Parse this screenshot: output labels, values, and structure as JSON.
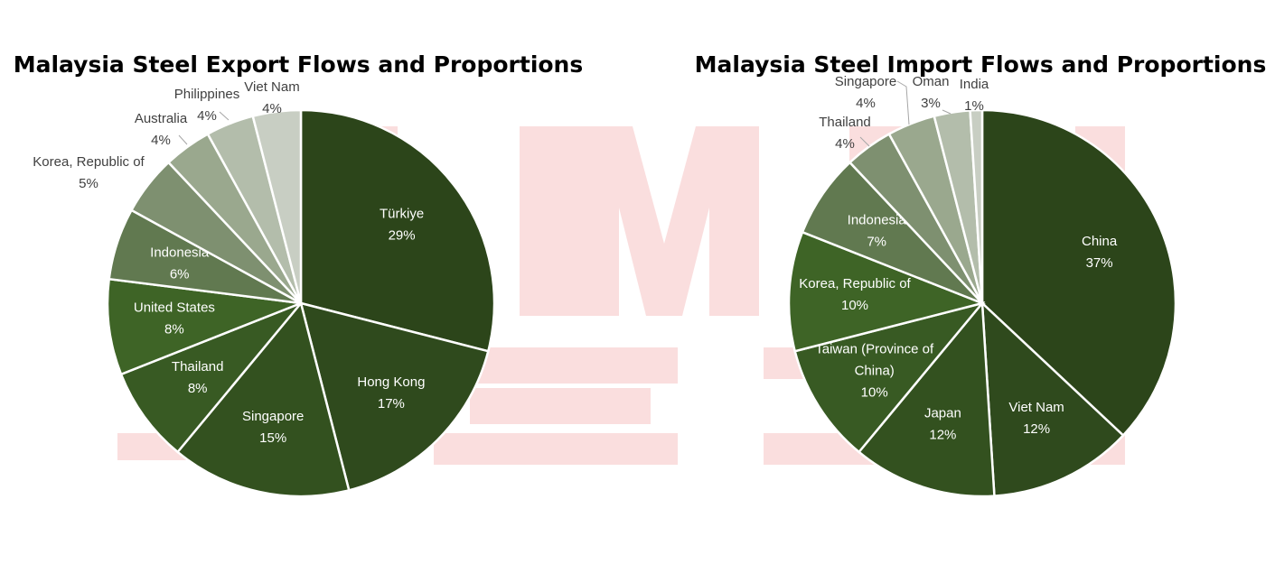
{
  "chart_data": [
    {
      "type": "pie",
      "title": "Malaysia Steel Export Flows and Proportions",
      "slices": [
        {
          "label": "Türkiye",
          "value": 29,
          "value_label": "29%",
          "color": "#2c451a"
        },
        {
          "label": "Hong Kong",
          "value": 17,
          "value_label": "17%",
          "color": "#2f4a1d"
        },
        {
          "label": "Singapore",
          "value": 15,
          "value_label": "15%",
          "color": "#33511f"
        },
        {
          "label": "Thailand",
          "value": 8,
          "value_label": "8%",
          "color": "#385a23"
        },
        {
          "label": "United States",
          "value": 8,
          "value_label": "8%",
          "color": "#3e6426"
        },
        {
          "label": "Indonesia",
          "value": 6,
          "value_label": "6%",
          "color": "#617950"
        },
        {
          "label": "Korea, Republic of",
          "value": 5,
          "value_label": "5%",
          "color": "#7e9070"
        },
        {
          "label": "Australia",
          "value": 4,
          "value_label": "4%",
          "color": "#9aa88e"
        },
        {
          "label": "Philippines",
          "value": 4,
          "value_label": "4%",
          "color": "#b3bdab"
        },
        {
          "label": "Viet Nam",
          "value": 4,
          "value_label": "4%",
          "color": "#c8cec3"
        }
      ]
    },
    {
      "type": "pie",
      "title": "Malaysia Steel Import Flows and Proportions",
      "slices": [
        {
          "label": "China",
          "value": 37,
          "value_label": "37%",
          "color": "#2c451a"
        },
        {
          "label": "Viet Nam",
          "value": 12,
          "value_label": "12%",
          "color": "#2f4a1d"
        },
        {
          "label": "Japan",
          "value": 12,
          "value_label": "12%",
          "color": "#33511f"
        },
        {
          "label": "Taiwan (Province of China)",
          "value": 10,
          "value_label": "10%",
          "color": "#385a23"
        },
        {
          "label": "Korea, Republic of",
          "value": 10,
          "value_label": "10%",
          "color": "#3e6426"
        },
        {
          "label": "Indonesia",
          "value": 7,
          "value_label": "7%",
          "color": "#617950"
        },
        {
          "label": "Thailand",
          "value": 4,
          "value_label": "4%",
          "color": "#7e9070"
        },
        {
          "label": "Singapore",
          "value": 4,
          "value_label": "4%",
          "color": "#9aa88e"
        },
        {
          "label": "Oman",
          "value": 3,
          "value_label": "3%",
          "color": "#b3bdab"
        },
        {
          "label": "India",
          "value": 1,
          "value_label": "1%",
          "color": "#c8cec3"
        }
      ]
    }
  ]
}
